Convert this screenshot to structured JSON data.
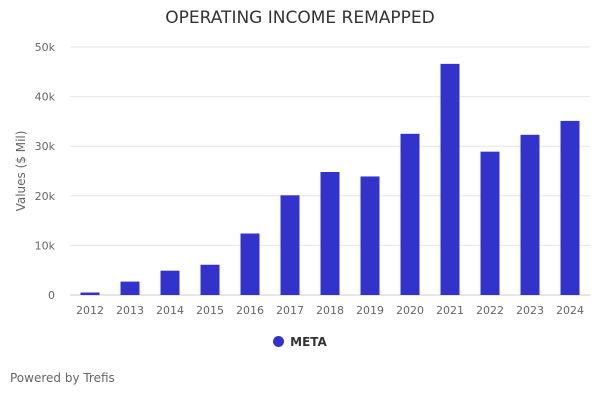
{
  "chart_data": {
    "type": "bar",
    "title": "OPERATING INCOME REMAPPED",
    "xlabel": "",
    "ylabel": "Values ($ Mil)",
    "ylim": [
      0,
      50000
    ],
    "yticks": [
      0,
      10000,
      20000,
      30000,
      40000,
      50000
    ],
    "ytick_labels": [
      "0",
      "10k",
      "20k",
      "30k",
      "40k",
      "50k"
    ],
    "grid": true,
    "legend_position": "bottom",
    "categories": [
      "2012",
      "2013",
      "2014",
      "2015",
      "2016",
      "2017",
      "2018",
      "2019",
      "2020",
      "2021",
      "2022",
      "2023",
      "2024"
    ],
    "series": [
      {
        "name": "META",
        "color": "#3333cc",
        "values": [
          500,
          2700,
          4900,
          6100,
          12400,
          20100,
          24800,
          23900,
          32500,
          46600,
          28900,
          32300,
          35100
        ]
      }
    ]
  },
  "footer": {
    "credit": "Powered by Trefis"
  }
}
